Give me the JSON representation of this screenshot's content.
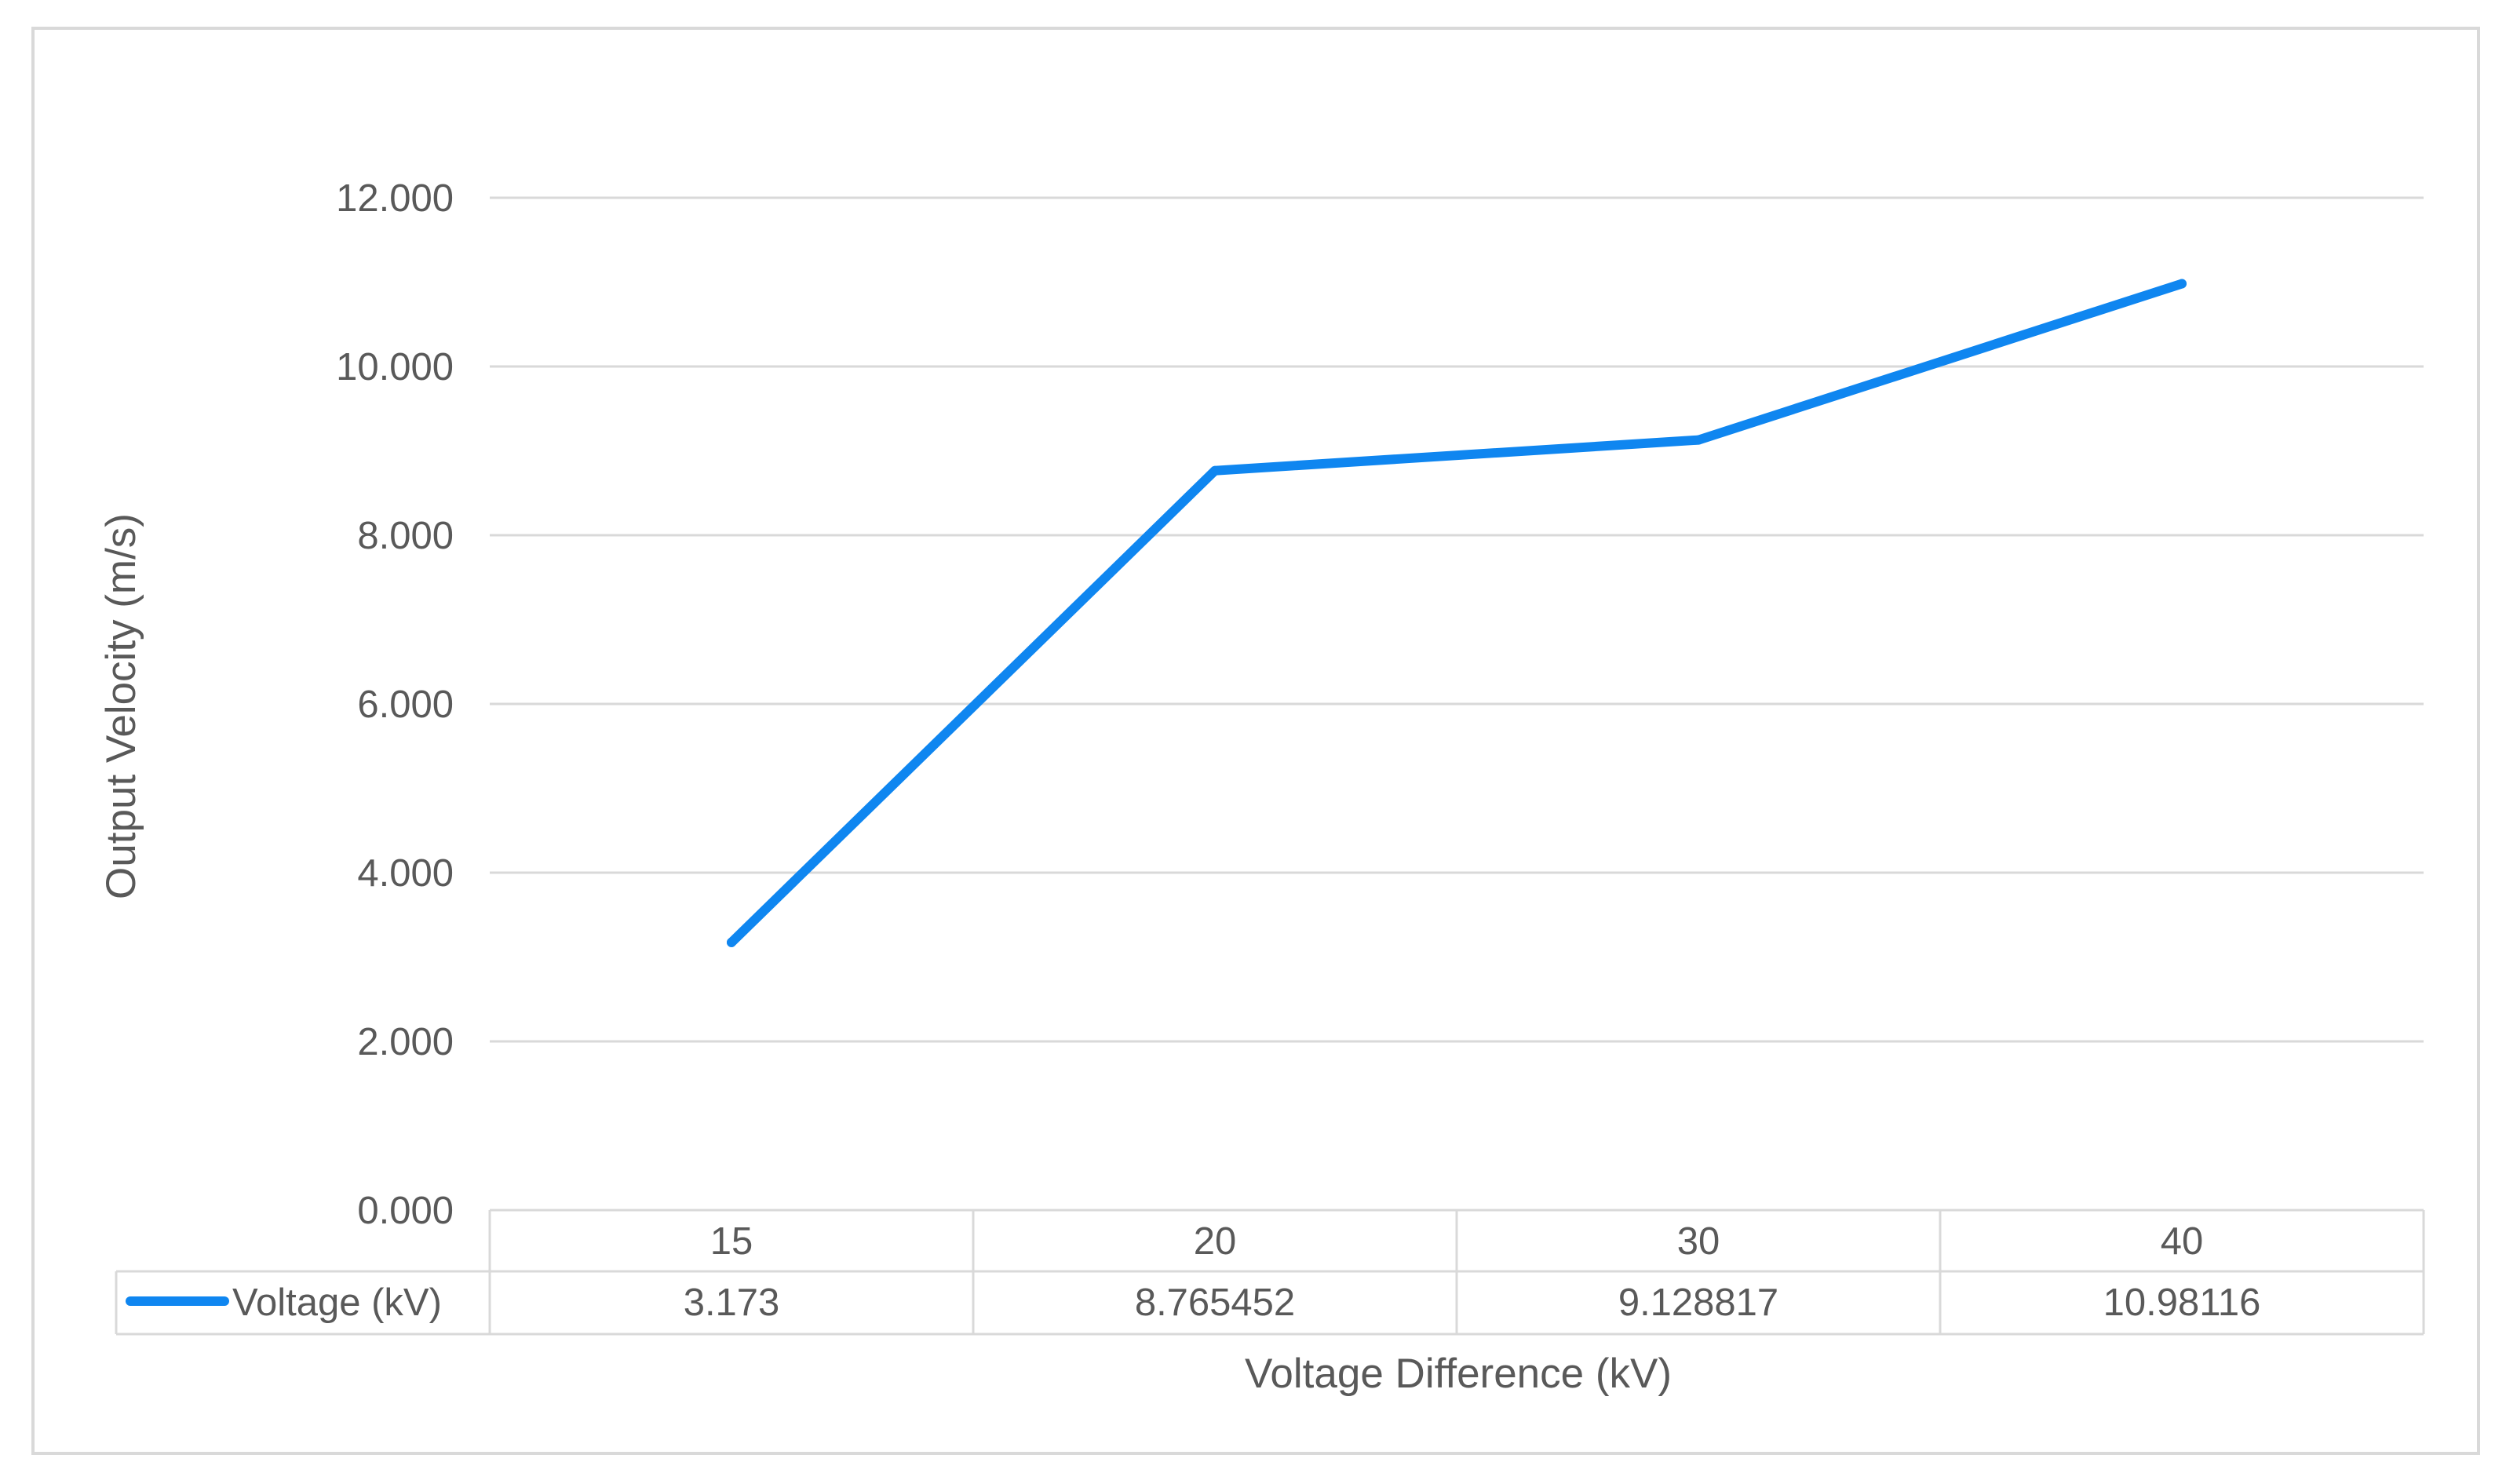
{
  "chart_data": {
    "type": "line",
    "categories": [
      "15",
      "20",
      "30",
      "40"
    ],
    "series": [
      {
        "name": "Voltage (kV)",
        "values": [
          3.173,
          8.765452,
          9.128817,
          10.98116
        ],
        "table_values": [
          "3.173",
          "8.765452",
          "9.128817",
          "10.98116"
        ],
        "color": "#0f86f0"
      }
    ],
    "xlabel": "Voltage Difference (kV)",
    "ylabel": "Output Velocity (m/s)",
    "ylim": [
      0,
      12
    ],
    "yticks": [
      0,
      2,
      4,
      6,
      8,
      10,
      12
    ],
    "ytick_labels": [
      "0.000",
      "2.000",
      "4.000",
      "6.000",
      "8.000",
      "10.000",
      "12.000"
    ],
    "grid": true,
    "data_table": true,
    "gridline_color": "#d9d9d9"
  }
}
